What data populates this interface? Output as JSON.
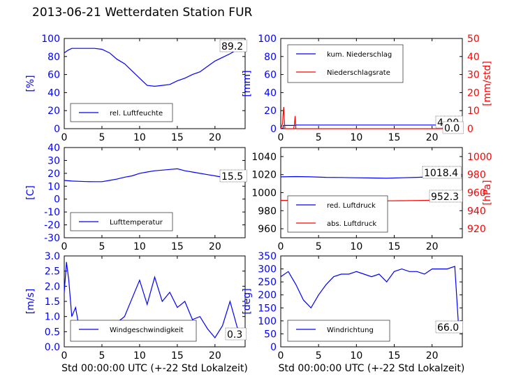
{
  "title": "2013-06-21 Wetterdaten Station FUR",
  "chart_data": [
    {
      "type": "line",
      "panel": "top-left",
      "ylabel": "[%]",
      "ylim": [
        0,
        100
      ],
      "yticks": [
        0,
        20,
        40,
        60,
        80,
        100
      ],
      "xlim": [
        0,
        24
      ],
      "xticks": [
        0,
        5,
        10,
        15,
        20
      ],
      "legend_position": "lower-left",
      "series": [
        {
          "name": "rel. Luftfeuchte",
          "color": "#0000ff",
          "x": [
            0,
            0.5,
            1,
            2,
            3,
            4,
            5,
            6,
            7,
            8,
            9,
            10,
            11,
            12,
            13,
            14,
            15,
            16,
            17,
            18,
            19,
            20,
            21,
            22,
            23,
            24
          ],
          "y": [
            84,
            87,
            89,
            89,
            89,
            89,
            88,
            84,
            77,
            72,
            64,
            56,
            48,
            47,
            48,
            49,
            53,
            56,
            60,
            63,
            69,
            75,
            79,
            83,
            88,
            89
          ]
        }
      ],
      "value_label": "89.2"
    },
    {
      "type": "line",
      "panel": "top-right",
      "ylabel": "[mm]",
      "ylabel_right": "[mm/std]",
      "ylim": [
        0,
        100
      ],
      "yticks": [
        0,
        20,
        40,
        60,
        80,
        100
      ],
      "ylim_right": [
        0,
        50
      ],
      "yticks_right": [
        0,
        10,
        20,
        30,
        40,
        50
      ],
      "xlim": [
        0,
        24
      ],
      "xticks": [
        0,
        5,
        10,
        15,
        20
      ],
      "legend_position": "upper-left",
      "series": [
        {
          "name": "kum. Niederschlag",
          "color": "#0000ff",
          "axis": "left",
          "x": [
            0,
            0.3,
            0.35,
            2,
            2.05,
            24
          ],
          "y": [
            0,
            0.5,
            3.6,
            3.6,
            4.0,
            4.0
          ]
        },
        {
          "name": "Niederschlagsrate",
          "color": "#ff0000",
          "axis": "right",
          "x": [
            0,
            0.25,
            0.3,
            0.4,
            0.45,
            0.55,
            1.7,
            1.8,
            1.9,
            2.0,
            24
          ],
          "y": [
            0,
            3,
            8,
            12,
            6,
            0,
            0,
            2,
            7,
            0,
            0
          ]
        }
      ],
      "value_labels": [
        "4.00",
        "0.0"
      ]
    },
    {
      "type": "line",
      "panel": "middle-left",
      "ylabel": "[C]",
      "ylim": [
        -30,
        40
      ],
      "yticks": [
        -30,
        -20,
        -10,
        0,
        10,
        20,
        30,
        40
      ],
      "xlim": [
        0,
        24
      ],
      "xticks": [
        0,
        5,
        10,
        15,
        20
      ],
      "legend_position": "lower-left",
      "series": [
        {
          "name": "Lufttemperatur",
          "color": "#0000ff",
          "x": [
            0,
            1,
            2,
            3,
            4,
            5,
            6,
            7,
            8,
            9,
            10,
            11,
            12,
            13,
            14,
            15,
            16,
            17,
            18,
            19,
            20,
            21,
            22,
            23,
            24
          ],
          "y": [
            14.5,
            14,
            13.8,
            13.6,
            13.5,
            13.5,
            14.5,
            15.5,
            17,
            18,
            20,
            21,
            22,
            22.5,
            23,
            23.5,
            22,
            21,
            20,
            19,
            18,
            17,
            16,
            15.5,
            15.5
          ]
        }
      ],
      "value_label": "15.5"
    },
    {
      "type": "line",
      "panel": "middle-right",
      "ylabel_right": "[hPa]",
      "ylim": [
        950,
        1050
      ],
      "yticks": [
        960,
        980,
        1000,
        1020,
        1040
      ],
      "ylim_right": [
        910,
        1010
      ],
      "yticks_right": [
        920,
        940,
        960,
        980,
        1000
      ],
      "xlim": [
        0,
        24
      ],
      "xticks": [
        0,
        5,
        10,
        15,
        20
      ],
      "legend_position": "lower-left",
      "series": [
        {
          "name": "red. Luftdruck",
          "color": "#0000ff",
          "axis": "left",
          "x": [
            0,
            2,
            4,
            6,
            8,
            10,
            12,
            14,
            16,
            18,
            20,
            22,
            24
          ],
          "y": [
            1017.5,
            1017.8,
            1017.5,
            1017.0,
            1016.8,
            1016.5,
            1016.3,
            1016.0,
            1016.5,
            1017.0,
            1017.5,
            1018.2,
            1018.4
          ]
        },
        {
          "name": "abs. Luftdruck",
          "color": "#ff0000",
          "axis": "right",
          "x": [
            0,
            2,
            4,
            6,
            8,
            10,
            12,
            14,
            16,
            18,
            20,
            22,
            24
          ],
          "y": [
            951.5,
            951.3,
            951.1,
            950.9,
            950.8,
            950.7,
            950.8,
            950.9,
            951.1,
            951.3,
            951.6,
            952.0,
            952.3
          ]
        }
      ],
      "value_labels": [
        "1018.4",
        "952.3"
      ]
    },
    {
      "type": "line",
      "panel": "bottom-left",
      "ylabel": "[m/s]",
      "xlabel": "Std 00:00:00 UTC (+-22 Std Lokalzeit)",
      "ylim": [
        0,
        3
      ],
      "yticks": [
        0.0,
        0.5,
        1.0,
        1.5,
        2.0,
        2.5,
        3.0
      ],
      "xlim": [
        0,
        24
      ],
      "xticks": [
        0,
        5,
        10,
        15,
        20
      ],
      "legend_position": "lower-left",
      "series": [
        {
          "name": "Windgeschwindigkeit",
          "color": "#0000ff",
          "x": [
            0,
            0.3,
            0.6,
            1,
            1.5,
            2,
            3,
            4,
            5,
            6,
            7,
            8,
            9,
            10,
            11,
            12,
            13,
            14,
            15,
            16,
            17,
            18,
            19,
            20,
            21,
            22,
            23,
            24
          ],
          "y": [
            1.8,
            2.8,
            2.2,
            1.0,
            1.3,
            0.6,
            0.4,
            0.3,
            0.5,
            0.4,
            0.8,
            1.0,
            1.6,
            2.2,
            1.4,
            2.3,
            1.5,
            1.8,
            1.3,
            1.5,
            0.9,
            1.0,
            0.6,
            0.3,
            0.7,
            1.5,
            0.6,
            0.3
          ]
        }
      ],
      "value_label": "0.3"
    },
    {
      "type": "line",
      "panel": "bottom-right",
      "ylabel": "[deg]",
      "xlabel": "Std 00:00:00 UTC (+-22 Std Lokalzeit)",
      "ylim": [
        0,
        350
      ],
      "yticks": [
        0,
        50,
        100,
        150,
        200,
        250,
        300,
        350
      ],
      "xlim": [
        0,
        24
      ],
      "xticks": [
        0,
        5,
        10,
        15,
        20
      ],
      "legend_position": "lower-left",
      "series": [
        {
          "name": "Windrichtung",
          "color": "#0000ff",
          "x": [
            0,
            1,
            2,
            3,
            4,
            5,
            6,
            7,
            8,
            9,
            10,
            11,
            12,
            13,
            14,
            15,
            16,
            17,
            18,
            19,
            20,
            21,
            22,
            23,
            23.5,
            24
          ],
          "y": [
            270,
            290,
            240,
            180,
            150,
            200,
            240,
            270,
            280,
            280,
            290,
            280,
            270,
            280,
            250,
            290,
            300,
            290,
            290,
            280,
            300,
            300,
            300,
            310,
            80,
            66
          ]
        }
      ],
      "value_label": "66.0"
    }
  ]
}
